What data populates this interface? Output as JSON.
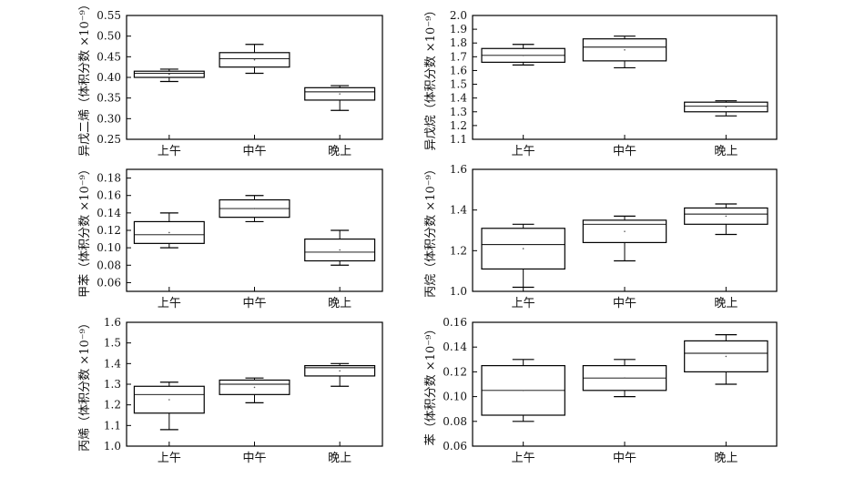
{
  "charts": [
    {
      "type": "box",
      "ylabel": "异戊二烯（体积分数 ×10⁻⁹）",
      "categories": [
        "上午",
        "中午",
        "晚上"
      ],
      "ylim": [
        0.25,
        0.55
      ],
      "yticks": [
        "0.25",
        "0.30",
        "0.35",
        "0.40",
        "0.45",
        "0.50",
        "0.55"
      ],
      "boxes": [
        {
          "min": 0.39,
          "q1": 0.4,
          "median": 0.41,
          "q3": 0.415,
          "max": 0.42
        },
        {
          "min": 0.41,
          "q1": 0.425,
          "median": 0.445,
          "q3": 0.46,
          "max": 0.48
        },
        {
          "min": 0.32,
          "q1": 0.345,
          "median": 0.365,
          "q3": 0.375,
          "max": 0.38
        }
      ]
    },
    {
      "type": "box",
      "ylabel": "异戊烷（体积分数 ×10⁻⁹）",
      "categories": [
        "上午",
        "中午",
        "晚上"
      ],
      "ylim": [
        1.1,
        2.0
      ],
      "yticks": [
        "1.1",
        "1.2",
        "1.3",
        "1.4",
        "1.5",
        "1.6",
        "1.7",
        "1.8",
        "1.9",
        "2.0"
      ],
      "boxes": [
        {
          "min": 1.64,
          "q1": 1.66,
          "median": 1.71,
          "q3": 1.76,
          "max": 1.79
        },
        {
          "min": 1.62,
          "q1": 1.67,
          "median": 1.77,
          "q3": 1.83,
          "max": 1.85
        },
        {
          "min": 1.27,
          "q1": 1.3,
          "median": 1.34,
          "q3": 1.37,
          "max": 1.38
        }
      ]
    },
    {
      "type": "box",
      "ylabel": "甲苯（体积分数 ×10⁻⁹）",
      "categories": [
        "上午",
        "中午",
        "晚上"
      ],
      "ylim": [
        0.05,
        0.19
      ],
      "yticks": [
        "0.06",
        "0.08",
        "0.10",
        "0.12",
        "0.14",
        "0.16",
        "0.18"
      ],
      "boxes": [
        {
          "min": 0.1,
          "q1": 0.105,
          "median": 0.115,
          "q3": 0.13,
          "max": 0.14
        },
        {
          "min": 0.13,
          "q1": 0.135,
          "median": 0.145,
          "q3": 0.155,
          "max": 0.16
        },
        {
          "min": 0.08,
          "q1": 0.085,
          "median": 0.095,
          "q3": 0.11,
          "max": 0.12
        }
      ]
    },
    {
      "type": "box",
      "ylabel": "丙烷（体积分数 ×10⁻⁹）",
      "categories": [
        "上午",
        "中午",
        "晚上"
      ],
      "ylim": [
        1.0,
        1.6
      ],
      "yticks": [
        "1.0",
        "1.2",
        "1.4",
        "1.6"
      ],
      "boxes": [
        {
          "min": 1.02,
          "q1": 1.11,
          "median": 1.23,
          "q3": 1.31,
          "max": 1.33
        },
        {
          "min": 1.15,
          "q1": 1.24,
          "median": 1.33,
          "q3": 1.35,
          "max": 1.37
        },
        {
          "min": 1.28,
          "q1": 1.33,
          "median": 1.38,
          "q3": 1.41,
          "max": 1.43
        }
      ]
    },
    {
      "type": "box",
      "ylabel": "丙烯（体积分数 ×10⁻⁹）",
      "categories": [
        "上午",
        "中午",
        "晚上"
      ],
      "ylim": [
        1.0,
        1.6
      ],
      "yticks": [
        "1.0",
        "1.1",
        "1.2",
        "1.3",
        "1.4",
        "1.5",
        "1.6"
      ],
      "boxes": [
        {
          "min": 1.08,
          "q1": 1.16,
          "median": 1.25,
          "q3": 1.29,
          "max": 1.31
        },
        {
          "min": 1.21,
          "q1": 1.25,
          "median": 1.3,
          "q3": 1.32,
          "max": 1.33
        },
        {
          "min": 1.29,
          "q1": 1.34,
          "median": 1.38,
          "q3": 1.39,
          "max": 1.4
        }
      ]
    },
    {
      "type": "box",
      "ylabel": "苯（体积分数 ×10⁻⁹）",
      "categories": [
        "上午",
        "中午",
        "晚上"
      ],
      "ylim": [
        0.06,
        0.16
      ],
      "yticks": [
        "0.06",
        "0.08",
        "0.10",
        "0.12",
        "0.14",
        "0.16"
      ],
      "boxes": [
        {
          "min": 0.08,
          "q1": 0.085,
          "median": 0.105,
          "q3": 0.125,
          "max": 0.13
        },
        {
          "min": 0.1,
          "q1": 0.105,
          "median": 0.115,
          "q3": 0.125,
          "max": 0.13
        },
        {
          "min": 0.11,
          "q1": 0.12,
          "median": 0.135,
          "q3": 0.145,
          "max": 0.15
        }
      ]
    }
  ]
}
